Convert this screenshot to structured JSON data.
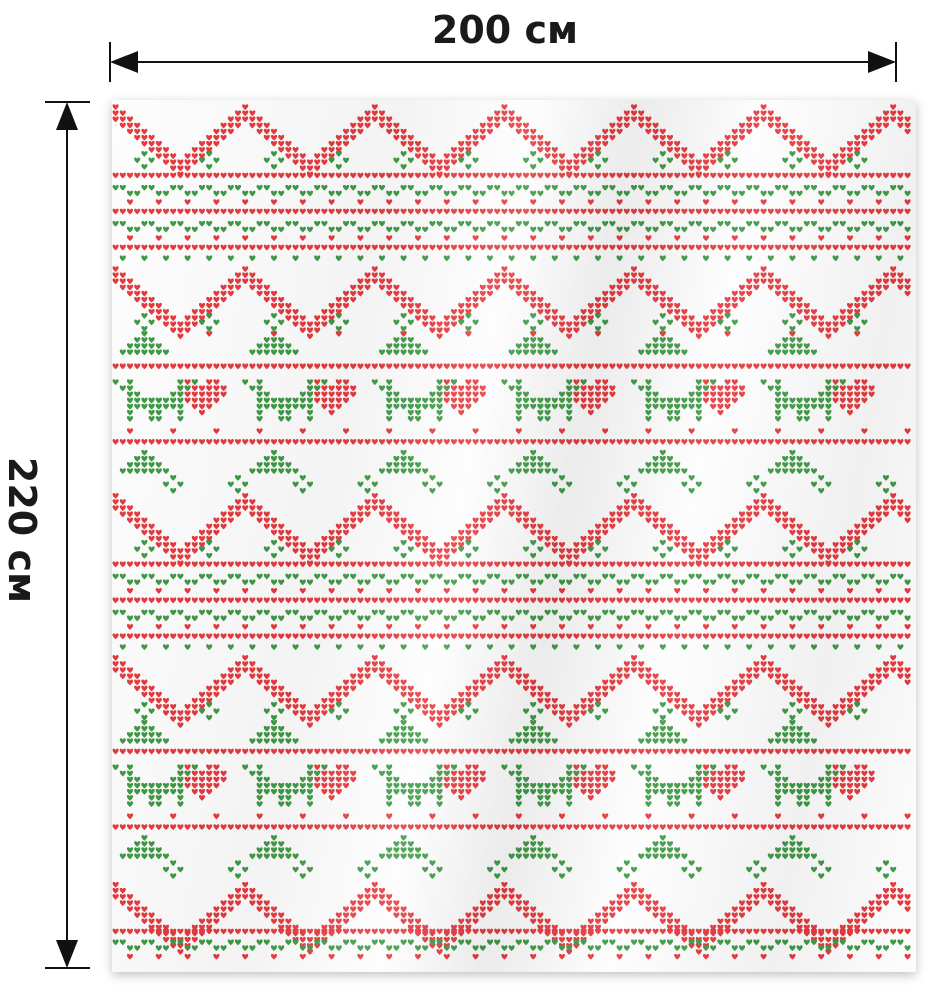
{
  "dimensions": {
    "width_label": "200 см",
    "height_label": "220 см"
  },
  "pattern": {
    "name": "knitted-christmas-sweater-pattern",
    "colors": {
      "red": "#e53b3f",
      "green": "#3f9a45",
      "background": "#fdfdfd",
      "arrow": "#111111"
    },
    "motifs": [
      "zigzag",
      "trees",
      "deer",
      "hearts",
      "dotted-bands"
    ]
  }
}
